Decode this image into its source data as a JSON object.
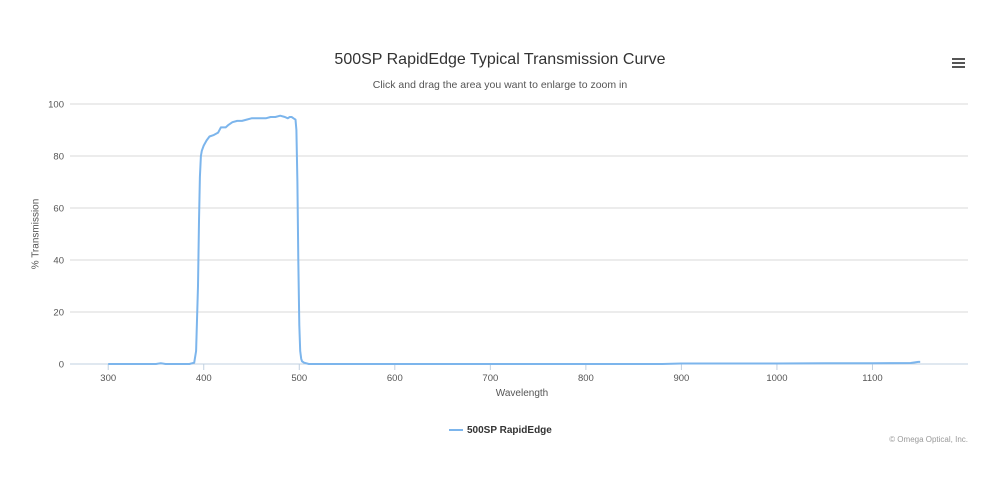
{
  "chart_data": {
    "type": "line",
    "title": "500SP RapidEdge Typical Transmission Curve",
    "subtitle": "Click and drag the area you want to enlarge to zoom in",
    "xlabel": "Wavelength",
    "ylabel": "% Transmission",
    "xlim": [
      260,
      1200
    ],
    "ylim": [
      0,
      100
    ],
    "x_ticks": [
      300,
      400,
      500,
      600,
      700,
      800,
      900,
      1000,
      1100
    ],
    "y_ticks": [
      0,
      20,
      40,
      60,
      80,
      100
    ],
    "grid": "horizontal",
    "legend_position": "bottom-center",
    "colors": {
      "series": "#7cb5ec",
      "grid": "#d8d8d8",
      "axis": "#c0d0e0"
    },
    "series": [
      {
        "name": "500SP RapidEdge",
        "x": [
          300,
          350,
          355,
          360,
          385,
          390,
          392,
          394,
          395,
          396,
          397,
          398,
          400,
          403,
          406,
          410,
          415,
          418,
          420,
          423,
          426,
          430,
          435,
          440,
          445,
          450,
          455,
          460,
          465,
          470,
          475,
          480,
          485,
          488,
          490,
          492,
          494,
          496,
          497,
          498,
          499,
          500,
          501,
          502,
          503,
          505,
          510,
          600,
          700,
          800,
          880,
          900,
          950,
          1000,
          1050,
          1100,
          1140,
          1148,
          1150
        ],
        "y": [
          0,
          0,
          0.3,
          0,
          0,
          0.5,
          5,
          30,
          55,
          72,
          80,
          82,
          84,
          86,
          87.5,
          88,
          89,
          91,
          91,
          91,
          92,
          93,
          93.5,
          93.5,
          94,
          94.5,
          94.5,
          94.5,
          94.5,
          95,
          95,
          95.5,
          95,
          94.5,
          95,
          95,
          94.5,
          94,
          90,
          70,
          40,
          15,
          5,
          2,
          1,
          0.5,
          0,
          0,
          0,
          0,
          0,
          0.2,
          0.2,
          0.2,
          0.3,
          0.3,
          0.4,
          0.8,
          0.8
        ]
      }
    ]
  },
  "menu": {
    "icon": "hamburger-menu-icon"
  },
  "credits": "© Omega Optical, Inc."
}
